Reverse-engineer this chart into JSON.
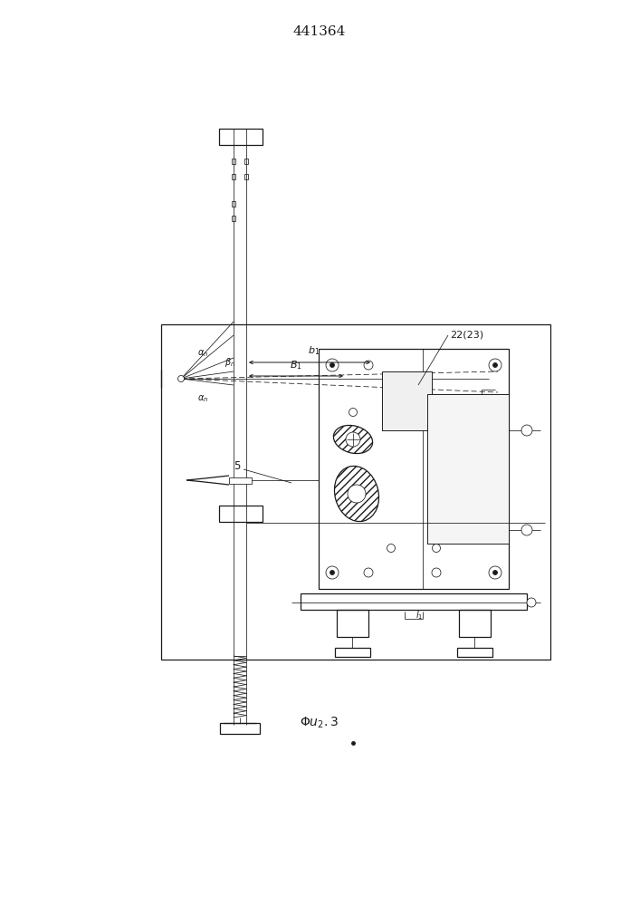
{
  "title": "441364",
  "title_fontsize": 11,
  "fig_caption": "Фи₃.3",
  "bg_color": "#ffffff",
  "line_color": "#1a1a1a"
}
